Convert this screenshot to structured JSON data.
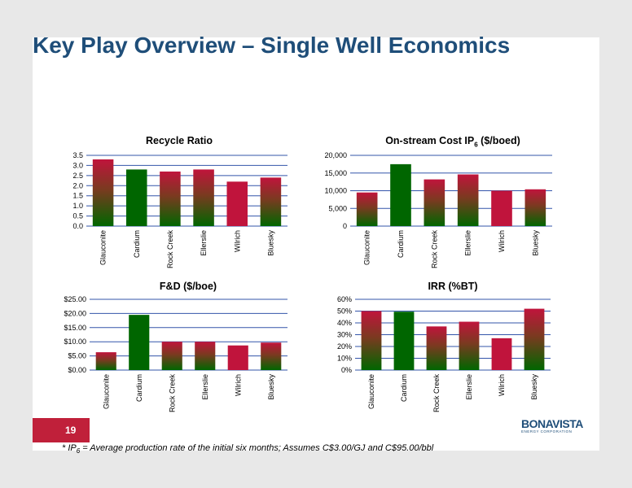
{
  "slide": {
    "title": "Key Play Overview – Single Well Economics",
    "page_number": "19",
    "footnote": "* IP6 = Average production rate of the initial six months; Assumes C$3.00/GJ and C$95.00/bbl",
    "logo_main": "BONAVISTA",
    "logo_sub": "ENERGY CORPORATION"
  },
  "colors": {
    "green": "#006600",
    "red": "#c0143c",
    "grid": "#3355aa",
    "title_blue": "#1f4e79"
  },
  "chart_data": [
    {
      "type": "bar",
      "title": "Recycle Ratio",
      "categories": [
        "Glauconite",
        "Cardium",
        "Rock Creek",
        "Ellerslie",
        "Wilrich",
        "Bluesky"
      ],
      "values": [
        3.3,
        2.8,
        2.7,
        2.8,
        2.2,
        2.4
      ],
      "styles": [
        "gradient",
        "green",
        "gradient",
        "gradient",
        "red",
        "gradient"
      ],
      "ylim": [
        0,
        3.5
      ],
      "yticks": [
        "0.0",
        "0.5",
        "1.0",
        "1.5",
        "2.0",
        "2.5",
        "3.0",
        "3.5"
      ],
      "grid": true
    },
    {
      "type": "bar",
      "title": "On-stream Cost IP",
      "title_sub": "6",
      "title_suffix": " ($/boed)",
      "categories": [
        "Glauconite",
        "Cardium",
        "Rock Creek",
        "Ellerslie",
        "Wilrich",
        "Bluesky"
      ],
      "values": [
        9500,
        17500,
        13200,
        14600,
        10000,
        10400
      ],
      "styles": [
        "gradient",
        "green",
        "gradient",
        "gradient",
        "red",
        "gradient"
      ],
      "ylim": [
        0,
        20000
      ],
      "yticks": [
        "0",
        "5,000",
        "10,000",
        "15,000",
        "20,000"
      ],
      "grid": true
    },
    {
      "type": "bar",
      "title": "F&D ($/boe)",
      "categories": [
        "Glauconite",
        "Cardium",
        "Rock Creek",
        "Ellerslie",
        "Wilrich",
        "Bluesky"
      ],
      "values": [
        6.3,
        19.5,
        10.0,
        10.0,
        8.7,
        9.7
      ],
      "styles": [
        "gradient",
        "green",
        "gradient",
        "gradient",
        "red",
        "gradient"
      ],
      "ylim": [
        0,
        25
      ],
      "yticks": [
        "$0.00",
        "$5.00",
        "$10.00",
        "$15.00",
        "$20.00",
        "$25.00"
      ],
      "grid": true
    },
    {
      "type": "bar",
      "title": "IRR (%BT)",
      "categories": [
        "Glauconite",
        "Cardium",
        "Rock Creek",
        "Ellerslie",
        "Wilrich",
        "Bluesky"
      ],
      "values": [
        50,
        49.5,
        37,
        41,
        27,
        52
      ],
      "styles": [
        "gradient",
        "green",
        "gradient",
        "gradient",
        "red",
        "gradient"
      ],
      "ylim": [
        0,
        60
      ],
      "yticks": [
        "0%",
        "10%",
        "20%",
        "30%",
        "40%",
        "50%",
        "60%"
      ],
      "grid": true
    }
  ]
}
